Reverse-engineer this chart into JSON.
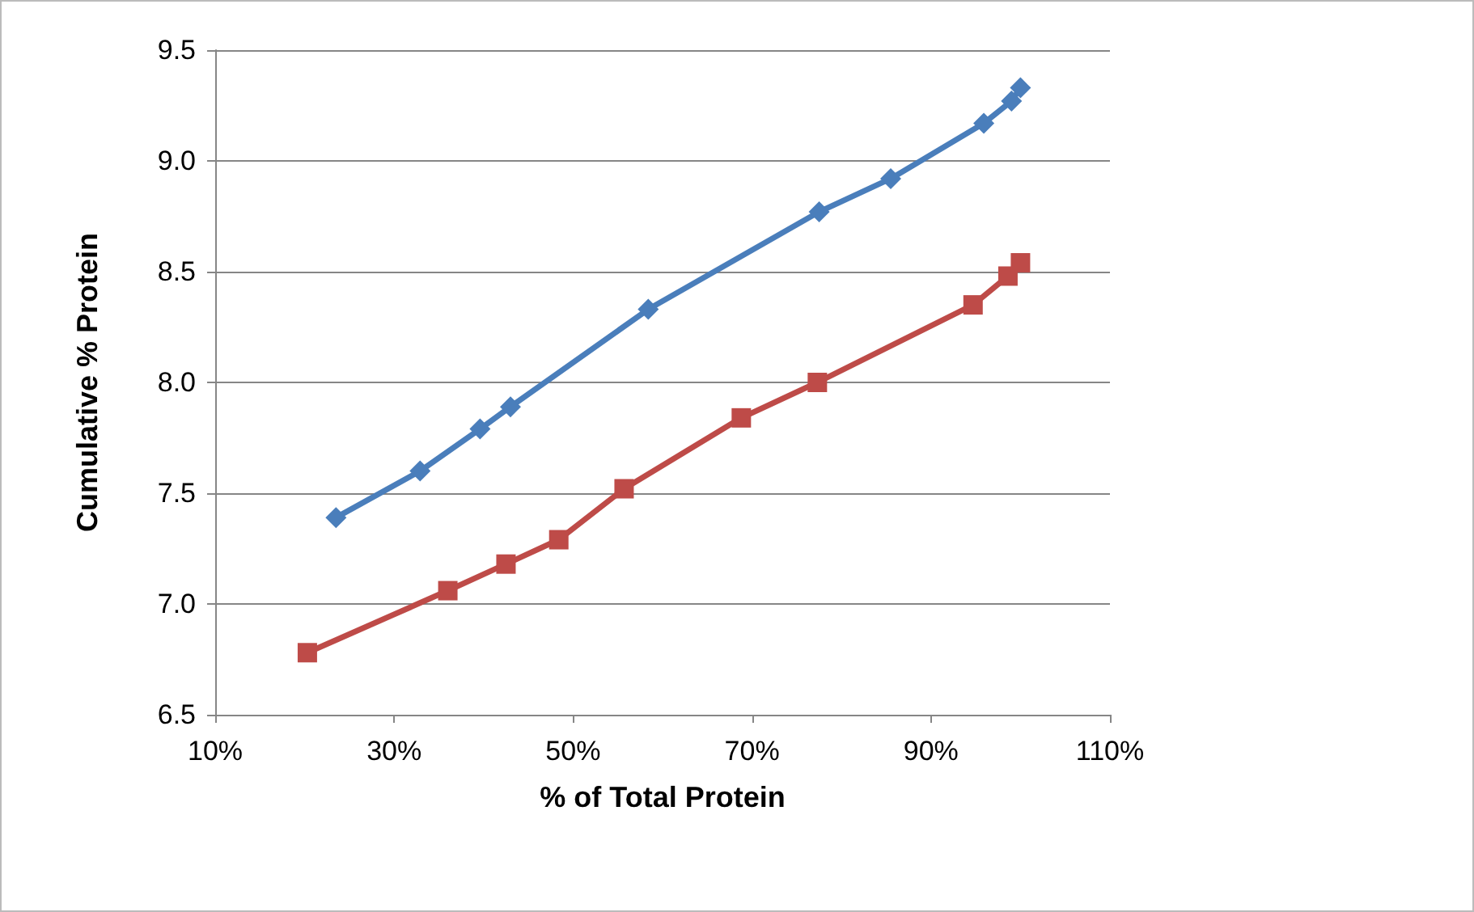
{
  "chart_data": {
    "type": "line",
    "xlabel": "% of Total Protein",
    "ylabel": "Cumulative % Protein",
    "xlim": [
      10,
      110
    ],
    "xticks": [
      {
        "value": 10,
        "label": "10%"
      },
      {
        "value": 30,
        "label": "30%"
      },
      {
        "value": 50,
        "label": "50%"
      },
      {
        "value": 70,
        "label": "70%"
      },
      {
        "value": 90,
        "label": "90%"
      },
      {
        "value": 110,
        "label": "110%"
      }
    ],
    "ylim": [
      6.5,
      9.5
    ],
    "yticks": [
      6.5,
      {
        "value": 7,
        "label": "7.0"
      },
      7.5,
      {
        "value": 8,
        "label": "8.0"
      },
      8.5,
      {
        "value": 9,
        "label": "9.0"
      },
      9.5
    ],
    "grid": "y",
    "line_style": "solid",
    "series": [
      {
        "color": "#4a7ebb",
        "marker": "diamond",
        "x": [
          23.5,
          32.9,
          39.6,
          43.0,
          58.4,
          77.5,
          85.5,
          95.9,
          99.0,
          100
        ],
        "values": [
          7.39,
          7.6,
          7.79,
          7.89,
          8.33,
          8.77,
          8.92,
          9.17,
          9.27,
          9.33
        ]
      },
      {
        "color": "#be4b48",
        "marker": "square",
        "x": [
          20.3,
          36.0,
          42.5,
          48.4,
          55.7,
          68.8,
          77.3,
          94.7,
          98.6,
          100
        ],
        "values": [
          6.78,
          7.06,
          7.18,
          7.29,
          7.52,
          7.84,
          8.0,
          8.35,
          8.48,
          8.54
        ]
      }
    ]
  }
}
